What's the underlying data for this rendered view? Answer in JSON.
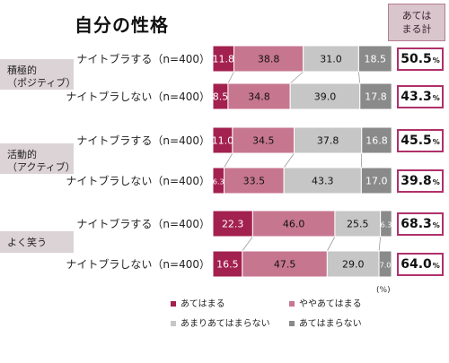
{
  "title": "自分の性格",
  "sum_header": [
    "あては",
    "まる計"
  ],
  "groups": [
    {
      "label": "積極的\n（ポジティブ）"
    },
    {
      "label": "活動的\n（アクティブ）"
    },
    {
      "label": "よく笑う"
    }
  ],
  "row_labels": [
    "ナイトブラする（n=400）",
    "ナイトブラしない（n=400）",
    "ナイトブラする（n=400）",
    "ナイトブラしない（n=400）",
    "ナイトブラする（n=400）",
    "ナイトブラしない（n=400）"
  ],
  "sums": [
    "50.5",
    "43.3",
    "45.5",
    "39.8",
    "68.3",
    "64.0"
  ],
  "sum_unit": "%",
  "unit_label": "(%)",
  "colors": {
    "accent": "#b0306a",
    "segments": [
      "#a3214f",
      "#c77690",
      "#c6c6c6",
      "#8a8a8a"
    ]
  },
  "chart_data": {
    "type": "bar",
    "stacked": true,
    "orientation": "horizontal",
    "title": "自分の性格",
    "unit": "%",
    "categories": [
      "積極的（ポジティブ） ナイトブラする（n=400）",
      "積極的（ポジティブ） ナイトブラしない（n=400）",
      "活動的（アクティブ） ナイトブラする（n=400）",
      "活動的（アクティブ） ナイトブラしない（n=400）",
      "よく笑う ナイトブラする（n=400）",
      "よく笑う ナイトブラしない（n=400）"
    ],
    "series": [
      {
        "name": "あてはまる",
        "values": [
          11.8,
          8.5,
          11.0,
          6.3,
          22.3,
          16.5
        ]
      },
      {
        "name": "ややあてはまる",
        "values": [
          38.8,
          34.8,
          34.5,
          33.5,
          46.0,
          47.5
        ]
      },
      {
        "name": "あまりあてはまらない",
        "values": [
          31.0,
          39.0,
          37.8,
          43.3,
          25.5,
          29.0
        ]
      },
      {
        "name": "あてはまらない",
        "values": [
          18.5,
          17.8,
          16.8,
          17.0,
          6.3,
          7.0
        ]
      }
    ],
    "xlim": [
      0,
      100
    ],
    "legend_position": "bottom"
  }
}
